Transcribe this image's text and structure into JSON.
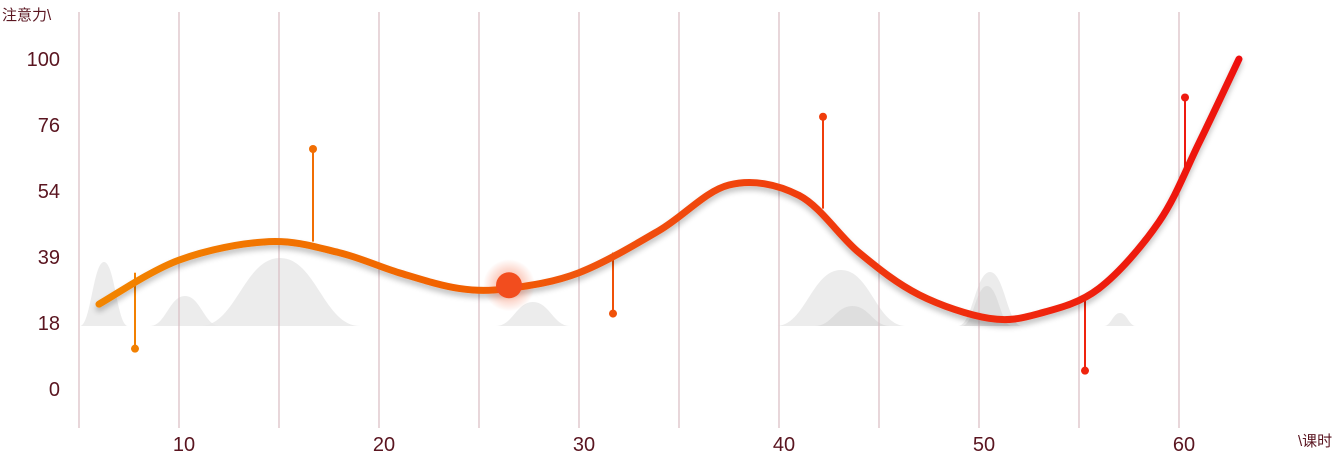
{
  "chart_data": {
    "type": "line",
    "ylabel": "注意力\\",
    "xlabel": "\\课时",
    "y_ticks": [
      100,
      76,
      54,
      39,
      18,
      0
    ],
    "x_ticks": [
      10,
      20,
      30,
      40,
      50,
      60
    ],
    "x_range": [
      5,
      65
    ],
    "series": [
      {
        "curve_points": [
          {
            "x": 6,
            "y": 24
          },
          {
            "x": 10,
            "y": 38
          },
          {
            "x": 14.5,
            "y": 42.5
          },
          {
            "x": 18,
            "y": 40
          },
          {
            "x": 21,
            "y": 34
          },
          {
            "x": 24,
            "y": 29
          },
          {
            "x": 26.5,
            "y": 29
          },
          {
            "x": 30,
            "y": 34
          },
          {
            "x": 34,
            "y": 45
          },
          {
            "x": 37.5,
            "y": 56
          },
          {
            "x": 41,
            "y": 53
          },
          {
            "x": 44,
            "y": 40
          },
          {
            "x": 47,
            "y": 27
          },
          {
            "x": 50.5,
            "y": 19.5
          },
          {
            "x": 53,
            "y": 21
          },
          {
            "x": 56,
            "y": 29
          },
          {
            "x": 59,
            "y": 47
          },
          {
            "x": 61,
            "y": 70
          },
          {
            "x": 63,
            "y": 100
          }
        ],
        "highlight_point": {
          "x": 26.5,
          "y": 30
        }
      }
    ],
    "annotations": [
      {
        "x": 7.8,
        "y_curve": 34,
        "y_end": 11
      },
      {
        "x": 16.7,
        "y_curve": 42.5,
        "y_end": 68
      },
      {
        "x": 31.7,
        "y_curve": 40,
        "y_end": 21
      },
      {
        "x": 42.2,
        "y_curve": 50,
        "y_end": 79
      },
      {
        "x": 55.3,
        "y_curve": 27,
        "y_end": 5
      },
      {
        "x": 60.3,
        "y_curve": 58,
        "y_end": 86
      }
    ],
    "colors": {
      "line_start": "#f28500",
      "line_end": "#ee1111",
      "highlight": "#f24d1e",
      "gridline": "#d8bcc2",
      "tick_text": "#5a1520",
      "mountain": "#e9e9e9",
      "mountain_dark": "#dcdcdc"
    }
  }
}
